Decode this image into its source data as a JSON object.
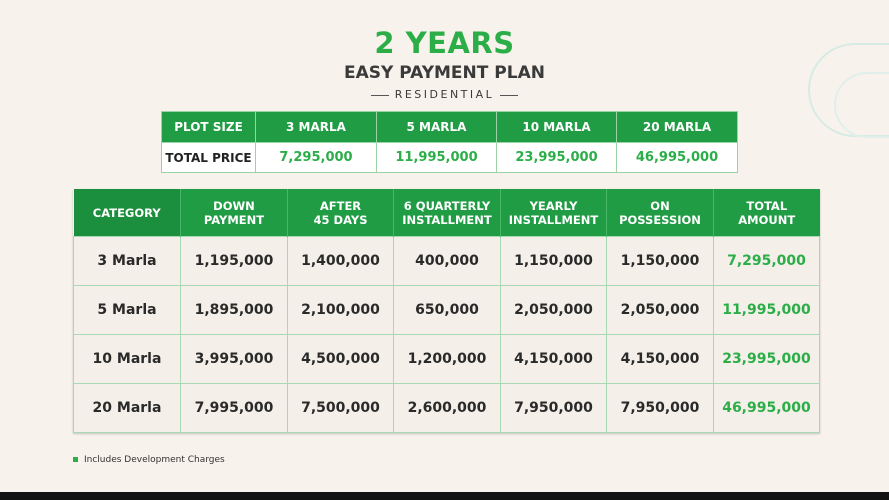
{
  "title": "2 YEARS",
  "subtitle": "EASY PAYMENT PLAN",
  "eyebrow": "RESIDENTIAL",
  "price_table": {
    "headers": [
      "PLOT SIZE",
      "3 MARLA",
      "5 MARLA",
      "10 MARLA",
      "20 MARLA"
    ],
    "row_label": "TOTAL PRICE",
    "prices": [
      "7,295,000",
      "11,995,000",
      "23,995,000",
      "46,995,000"
    ]
  },
  "main_table": {
    "headers": [
      "CATEGORY",
      [
        "DOWN",
        "PAYMENT"
      ],
      [
        "AFTER",
        "45 DAYS"
      ],
      [
        "6 QUARTERLY",
        "INSTALLMENT"
      ],
      [
        "YEARLY",
        "INSTALLMENT"
      ],
      [
        "ON",
        "POSSESSION"
      ],
      [
        "TOTAL",
        "AMOUNT"
      ]
    ],
    "rows": [
      [
        "3 Marla",
        "1,195,000",
        "1,400,000",
        "400,000",
        "1,150,000",
        "1,150,000",
        "7,295,000"
      ],
      [
        "5 Marla",
        "1,895,000",
        "2,100,000",
        "650,000",
        "2,050,000",
        "2,050,000",
        "11,995,000"
      ],
      [
        "10 Marla",
        "3,995,000",
        "4,500,000",
        "1,200,000",
        "4,150,000",
        "4,150,000",
        "23,995,000"
      ],
      [
        "20 Marla",
        "7,995,000",
        "7,500,000",
        "2,600,000",
        "7,950,000",
        "7,950,000",
        "46,995,000"
      ]
    ]
  },
  "footnote": "Includes Development Charges",
  "colors": {
    "brand_green": "#2bae48",
    "header_green": "#1f9c44",
    "background": "#f8f2ec"
  }
}
